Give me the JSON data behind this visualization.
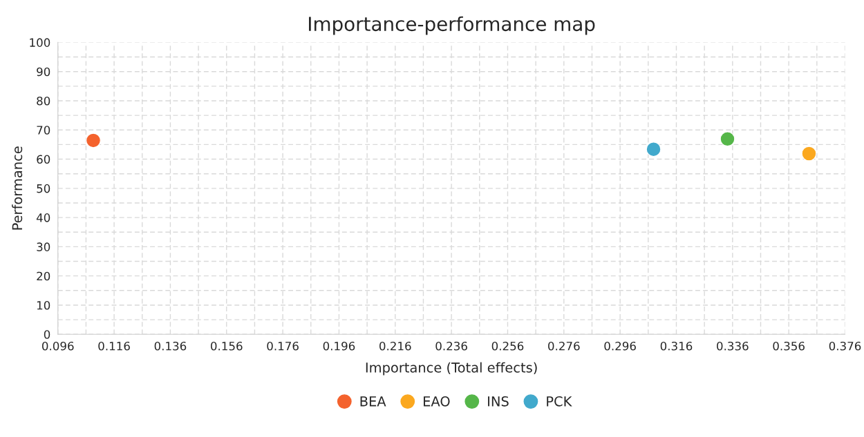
{
  "chart_data": {
    "type": "scatter",
    "title": "Importance-performance map",
    "xlabel": "Importance (Total effects)",
    "ylabel": "Performance",
    "series": [
      {
        "name": "BEA",
        "color": "#f4622d",
        "x": [
          0.1086
        ],
        "values": [
          66.4
        ]
      },
      {
        "name": "EAO",
        "color": "#fba81f",
        "x": [
          0.3632
        ],
        "values": [
          61.9
        ]
      },
      {
        "name": "INS",
        "color": "#55b649",
        "x": [
          0.3342
        ],
        "values": [
          66.9
        ]
      },
      {
        "name": "PCK",
        "color": "#41a9cc",
        "x": [
          0.3079
        ],
        "values": [
          63.4
        ]
      }
    ],
    "xlim": [
      0.096,
      0.376
    ],
    "xticks": [
      {
        "value": 0.096,
        "label": "0.096"
      },
      {
        "value": 0.106,
        "label": null
      },
      {
        "value": 0.116,
        "label": "0.116"
      },
      {
        "value": 0.126,
        "label": null
      },
      {
        "value": 0.136,
        "label": "0.136"
      },
      {
        "value": 0.146,
        "label": null
      },
      {
        "value": 0.156,
        "label": "0.156"
      },
      {
        "value": 0.166,
        "label": null
      },
      {
        "value": 0.176,
        "label": "0.176"
      },
      {
        "value": 0.186,
        "label": null
      },
      {
        "value": 0.196,
        "label": "0.196"
      },
      {
        "value": 0.206,
        "label": null
      },
      {
        "value": 0.216,
        "label": "0.216"
      },
      {
        "value": 0.226,
        "label": null
      },
      {
        "value": 0.236,
        "label": "0.236"
      },
      {
        "value": 0.246,
        "label": null
      },
      {
        "value": 0.256,
        "label": "0.256"
      },
      {
        "value": 0.266,
        "label": null
      },
      {
        "value": 0.276,
        "label": "0.276"
      },
      {
        "value": 0.286,
        "label": null
      },
      {
        "value": 0.296,
        "label": "0.296"
      },
      {
        "value": 0.306,
        "label": null
      },
      {
        "value": 0.316,
        "label": "0.316"
      },
      {
        "value": 0.326,
        "label": null
      },
      {
        "value": 0.336,
        "label": "0.336"
      },
      {
        "value": 0.346,
        "label": null
      },
      {
        "value": 0.356,
        "label": "0.356"
      },
      {
        "value": 0.366,
        "label": null
      },
      {
        "value": 0.376,
        "label": "0.376"
      }
    ],
    "ylim": [
      0,
      100
    ],
    "yticks": [
      0,
      {
        "value": 5,
        "label": null
      },
      10,
      {
        "value": 15,
        "label": null
      },
      20,
      {
        "value": 25,
        "label": null
      },
      30,
      {
        "value": 35,
        "label": null
      },
      40,
      {
        "value": 45,
        "label": null
      },
      50,
      {
        "value": 55,
        "label": null
      },
      60,
      {
        "value": 65,
        "label": null
      },
      70,
      {
        "value": 75,
        "label": null
      },
      80,
      {
        "value": 85,
        "label": null
      },
      90,
      {
        "value": 95,
        "label": null
      },
      100
    ],
    "grid": true,
    "legend": "bottom",
    "marker": "circle"
  }
}
